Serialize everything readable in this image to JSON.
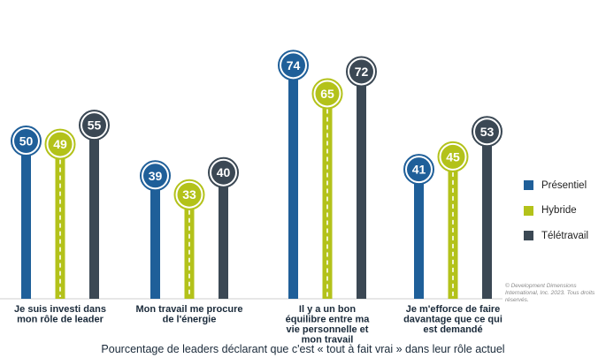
{
  "chart_data": {
    "type": "bar",
    "categories": [
      [
        "Je suis investi dans",
        "mon rôle de leader"
      ],
      [
        "Mon travail me procure",
        "de l'énergie"
      ],
      [
        "Il y a un bon",
        "équilibre entre ma",
        "vie personnelle et",
        "mon travail"
      ],
      [
        "Je m'efforce de faire",
        "davantage que ce qui",
        "est demandé"
      ]
    ],
    "series": [
      {
        "name": "Présentiel",
        "values": [
          50,
          39,
          74,
          41
        ],
        "color": "#1f5f99"
      },
      {
        "name": "Hybride",
        "values": [
          49,
          33,
          65,
          45
        ],
        "color": "#b3c21a"
      },
      {
        "name": "Télétravail",
        "values": [
          55,
          40,
          72,
          53
        ],
        "color": "#3b4854"
      }
    ],
    "ylim": [
      0,
      80
    ],
    "grid": false,
    "legend_position": "right",
    "caption": "Pourcentage de leaders déclarant que c'est « tout à fait vrai » dans leur rôle actuel"
  },
  "copyright": "© Development Dimensions International, Inc. 2023. Tous droits réservés."
}
